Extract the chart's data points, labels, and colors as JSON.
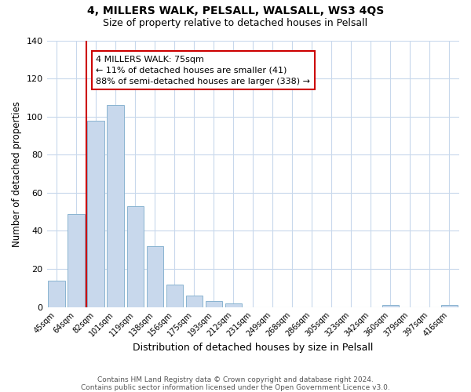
{
  "title": "4, MILLERS WALK, PELSALL, WALSALL, WS3 4QS",
  "subtitle": "Size of property relative to detached houses in Pelsall",
  "xlabel": "Distribution of detached houses by size in Pelsall",
  "ylabel": "Number of detached properties",
  "bar_labels": [
    "45sqm",
    "64sqm",
    "82sqm",
    "101sqm",
    "119sqm",
    "138sqm",
    "156sqm",
    "175sqm",
    "193sqm",
    "212sqm",
    "231sqm",
    "249sqm",
    "268sqm",
    "286sqm",
    "305sqm",
    "323sqm",
    "342sqm",
    "360sqm",
    "379sqm",
    "397sqm",
    "416sqm"
  ],
  "bar_values": [
    14,
    49,
    98,
    106,
    53,
    32,
    12,
    6,
    3,
    2,
    0,
    0,
    0,
    0,
    0,
    0,
    0,
    1,
    0,
    0,
    1
  ],
  "bar_color": "#c8d8ec",
  "bar_edge_color": "#8ab4d0",
  "ylim": [
    0,
    140
  ],
  "yticks": [
    0,
    20,
    40,
    60,
    80,
    100,
    120,
    140
  ],
  "vline_x": 1.5,
  "vline_color": "#cc0000",
  "annotation_title": "4 MILLERS WALK: 75sqm",
  "annotation_line1": "← 11% of detached houses are smaller (41)",
  "annotation_line2": "88% of semi-detached houses are larger (338) →",
  "annotation_box_edge": "#cc0000",
  "footer_line1": "Contains HM Land Registry data © Crown copyright and database right 2024.",
  "footer_line2": "Contains public sector information licensed under the Open Government Licence v3.0.",
  "background_color": "#ffffff",
  "grid_color": "#c8d8ec"
}
